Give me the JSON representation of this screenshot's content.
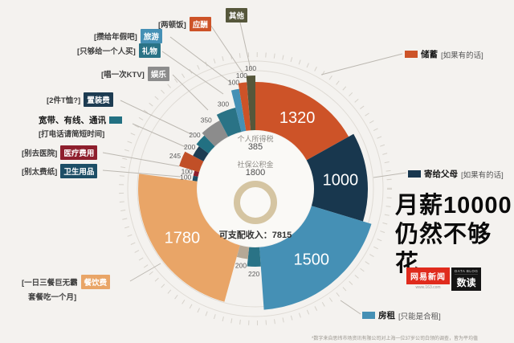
{
  "title": {
    "line1": "月薪10000",
    "line2": "仍然不够花"
  },
  "brand": {
    "name": "网易新闻",
    "url": "www.163.com",
    "data_label": "DATA BLOG",
    "product": "数读"
  },
  "center": {
    "tax_label": "个人所得税",
    "tax_value": "385",
    "fund_label": "社保公积金",
    "fund_value": "1800",
    "disposable": "可支配收入：7815"
  },
  "footnote": "*数字来自思纬市场资讯有限公司对上海一位37岁公司白领的调查，皆为平均值",
  "callouts": [
    {
      "id": "qita",
      "label": "其他",
      "hint": "",
      "color": "#56573b"
    },
    {
      "id": "yingchou",
      "label": "应酬",
      "hint": "[两顿饭]",
      "color": "#cd5328"
    },
    {
      "id": "lvyou",
      "label": "旅游",
      "hint": "[攒给年假吧]",
      "color": "#4590b5"
    },
    {
      "id": "liwu",
      "label": "礼物",
      "hint": "[只够给一个人买]",
      "color": "#2a7386"
    },
    {
      "id": "yule",
      "label": "娱乐",
      "hint": "[唱一次KTV]",
      "color": "#8c8c8c"
    },
    {
      "id": "zhizhuang",
      "label": "置装费",
      "hint": "[2件T恤?]",
      "color": "#1d3c52"
    },
    {
      "id": "kuandai",
      "label": "宽带、有线、通讯",
      "hint": "[打电话请简短时间]",
      "color": "#227082"
    },
    {
      "id": "yiliao",
      "label": "医疗费用",
      "hint": "[别去医院]",
      "color": "#8e1f2d"
    },
    {
      "id": "weisheng",
      "label": "卫生用品",
      "hint": "[别太费纸]",
      "color": "#1d4e66"
    },
    {
      "id": "canyin",
      "label": "餐饮费",
      "hint": "[一日三餐巨无霸",
      "hint2": "套餐吃一个月]",
      "color": "#e9a567"
    },
    {
      "id": "chuxu",
      "label": "储蓄",
      "hint": "[如果有的话]",
      "color": "#cd5328"
    },
    {
      "id": "fumu",
      "label": "寄给父母",
      "hint": "[如果有的话]",
      "color": "#18374e"
    },
    {
      "id": "fangzu",
      "label": "房租",
      "hint": "[只能是合租]",
      "color": "#4590b5"
    }
  ],
  "chart_data": {
    "type": "pie",
    "title": "月薪10000 仍然不够花",
    "total": 7815,
    "center_text": "可支配收入：7815",
    "segments": [
      {
        "label": "储蓄",
        "value": 1320,
        "color": "#cd5328"
      },
      {
        "label": "寄给父母",
        "value": 1000,
        "color": "#18374e"
      },
      {
        "label": "房租",
        "value": 1500,
        "color": "#4590b5"
      },
      {
        "label": "",
        "value": 220,
        "color": "#2a7386"
      },
      {
        "label": "",
        "value": 200,
        "color": "#b5a896"
      },
      {
        "label": "餐饮费",
        "value": 1780,
        "color": "#e9a567"
      },
      {
        "label": "卫生用品",
        "value": 100,
        "color": "#1d4e66"
      },
      {
        "label": "医疗费用",
        "value": 100,
        "color": "#8e1f2d"
      },
      {
        "label": "宽带、有线、通讯",
        "value": 245,
        "color": "#c14f27"
      },
      {
        "label": "置装费",
        "value": 200,
        "color": "#1d3c52"
      },
      {
        "label": "",
        "value": 200,
        "color": "#227082"
      },
      {
        "label": "娱乐",
        "value": 350,
        "color": "#8c8c8c"
      },
      {
        "label": "礼物",
        "value": 300,
        "color": "#2a7386"
      },
      {
        "label": "旅游",
        "value": 100,
        "color": "#4590b5"
      },
      {
        "label": "应酬",
        "value": 100,
        "color": "#cd5328"
      },
      {
        "label": "其他",
        "value": 100,
        "color": "#56573b"
      }
    ]
  }
}
